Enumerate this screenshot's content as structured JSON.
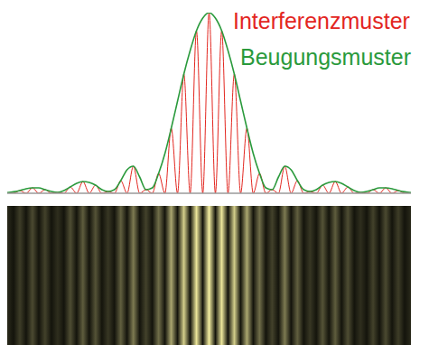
{
  "chart_data": {
    "type": "line",
    "x": [
      -16,
      -15.5,
      -15,
      -14.5,
      -14,
      -13.5,
      -13,
      -12.5,
      -12,
      -11.5,
      -11,
      -10.5,
      -10,
      -9.5,
      -9,
      -8.5,
      -8,
      -7.5,
      -7,
      -6.5,
      -6,
      -5.5,
      -5,
      -4.5,
      -4,
      -3.5,
      -3,
      -2.5,
      -2,
      -1.5,
      -1,
      -0.5,
      0,
      0.5,
      1,
      1.5,
      2,
      2.5,
      3,
      3.5,
      4,
      4.5,
      5,
      5.5,
      6,
      6.5,
      7,
      7.5,
      8,
      8.5,
      9,
      9.5,
      10,
      10.5,
      11,
      11.5,
      12,
      12.5,
      13,
      13.5,
      14,
      14.5,
      15,
      15.5,
      16
    ],
    "series": [
      {
        "name": "Interferenzmuster",
        "color": "#e3261f",
        "values": [
          0.3,
          0,
          1.5,
          0,
          3,
          0,
          2,
          0,
          0.5,
          0,
          3.5,
          0,
          6.5,
          0,
          4.5,
          0,
          1,
          0,
          7,
          0,
          15,
          0,
          2,
          0,
          11,
          0,
          36,
          0,
          66,
          0,
          90,
          0,
          100,
          0,
          90,
          0,
          66,
          0,
          36,
          0,
          11,
          0,
          2,
          0,
          15,
          0,
          7,
          0,
          1,
          0,
          4.5,
          0,
          6.5,
          0,
          3.5,
          0,
          0.5,
          0,
          2,
          0,
          3,
          0,
          1.5,
          0,
          0.3
        ]
      },
      {
        "name": "Beugungsmuster",
        "color": "#2a9a3c",
        "values": [
          0.3,
          0.8,
          1.5,
          2.5,
          3,
          3,
          2,
          1,
          0.5,
          1.5,
          3.5,
          5.5,
          6.5,
          6,
          4.5,
          2,
          1,
          2,
          7,
          13,
          15,
          9,
          2,
          3,
          11,
          22,
          36,
          51,
          66,
          79,
          90,
          97,
          100,
          97,
          90,
          79,
          66,
          51,
          36,
          22,
          11,
          3,
          2,
          9,
          15,
          13,
          7,
          2,
          1,
          2,
          4.5,
          6,
          6.5,
          5.5,
          3.5,
          1.5,
          0.5,
          1,
          2,
          3,
          3,
          2.5,
          1.5,
          0.8,
          0.3
        ]
      }
    ],
    "xlim": [
      -16,
      16
    ],
    "ylim": [
      0,
      100
    ],
    "grid": false,
    "legend": "upper right",
    "tick_labels": false
  }
}
